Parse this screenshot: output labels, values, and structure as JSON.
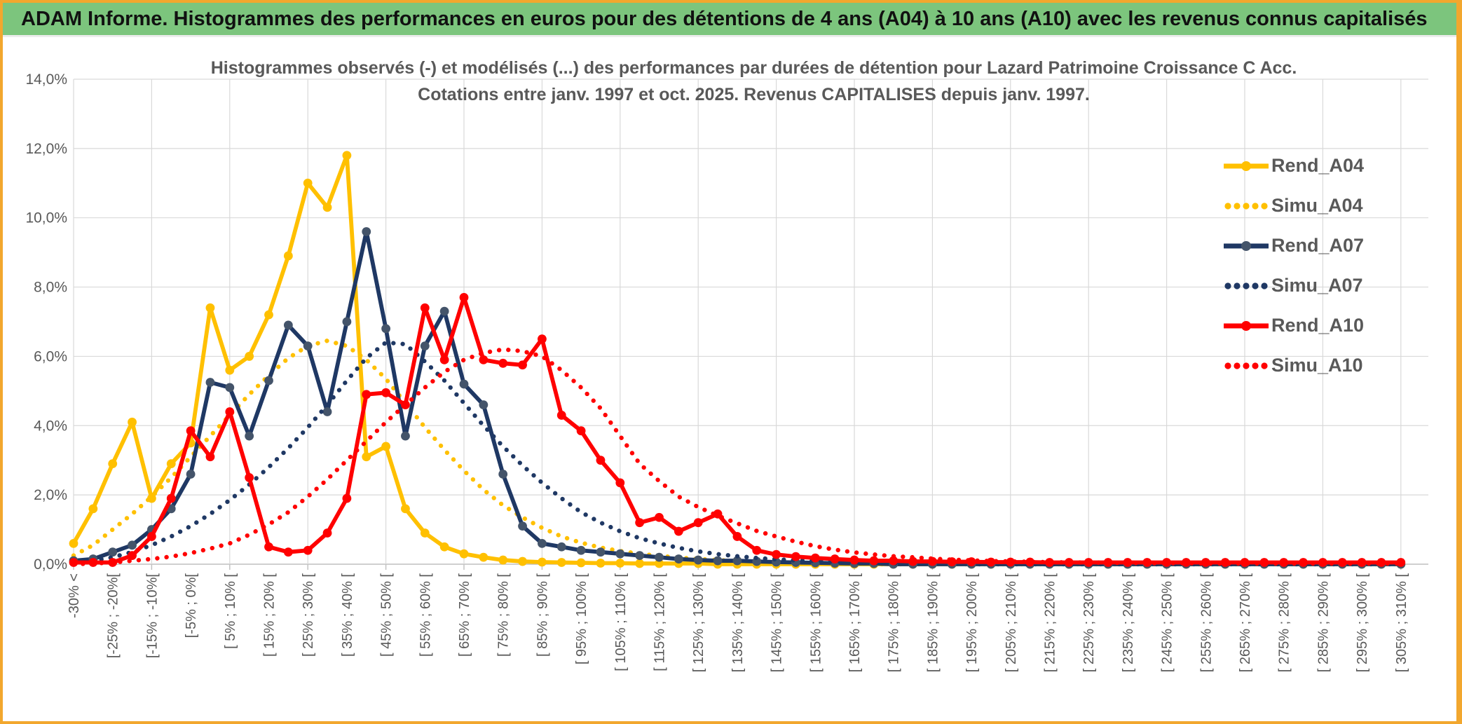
{
  "banner": {
    "title": "ADAM Informe. Histogrammes des performances en euros pour des détentions de 4 ans (A04) à 10 ans (A10) avec les revenus connus capitalisés",
    "bg_color": "#7CC57D",
    "frame_color": "#F2A72E"
  },
  "chart_data": {
    "type": "line",
    "title": "Histogrammes observés (-) et modélisés (...) des performances par durées de détention pour Lazard Patrimoine Croissance C Acc.",
    "subtitle": "Cotations entre janv. 1997 et oct. 2025. Revenus CAPITALISES depuis janv. 1997.",
    "xlabel": "",
    "ylabel": "",
    "ylim": [
      0,
      14
    ],
    "grid": "on",
    "legend_position": "right",
    "text_color": "#595959",
    "grid_color": "#D9D9D9",
    "axis_color": "#BFBFBF",
    "y_tick_values": [
      14,
      12,
      10,
      8,
      6,
      4,
      2,
      0
    ],
    "y_tick_labels": [
      "14,0%",
      "12,0%",
      "10,0%",
      "8,0%",
      "6,0%",
      "4,0%",
      "2,0%",
      "0,0%"
    ],
    "categories": [
      "-30% <",
      "",
      "[-25% ; -20%[",
      "",
      "[-15% ; -10%[",
      "",
      "[-5% ; 0%[",
      "",
      "[ 5% ; 10% [",
      "",
      "[ 15% ; 20% [",
      "",
      "[ 25% ; 30% [",
      "",
      "[ 35% ; 40% [",
      "",
      "[ 45% ; 50% [",
      "",
      "[ 55% ; 60% [",
      "",
      "[ 65% ; 70% [",
      "",
      "[ 75% ; 80% [",
      "",
      "[ 85% ; 90% [",
      "",
      "[ 95% ; 100% [",
      "",
      "[ 105% ; 110% [",
      "",
      "[ 115% ; 120% [",
      "",
      "[ 125% ; 130% [",
      "",
      "[ 135% ; 140% [",
      "",
      "[ 145% ; 150% [",
      "",
      "[ 155% ; 160% [",
      "",
      "[ 165% ; 170% [",
      "",
      "[ 175% ; 180% [",
      "",
      "[ 185% ; 190% [",
      "",
      "[ 195% ; 200% [",
      "",
      "[ 205% ; 210% [",
      "",
      "[ 215% ; 220% [",
      "",
      "[ 225% ; 230% [",
      "",
      "[ 235% ; 240% [",
      "",
      "[ 245% ; 250% [",
      "",
      "[ 255% ; 260% [",
      "",
      "[ 265% ; 270% [",
      "",
      "[ 275% ; 280% [",
      "",
      "[ 285% ; 290% [",
      "",
      "[ 295% ; 300% [",
      "",
      "[ 305% ; 310% ["
    ],
    "series": [
      {
        "name": "Rend_A04",
        "color": "#FFC000",
        "style": "solid",
        "markers": true,
        "values": [
          0.6,
          1.6,
          2.9,
          4.1,
          1.9,
          2.9,
          3.5,
          7.4,
          5.6,
          6.0,
          7.2,
          8.9,
          11.0,
          10.3,
          11.8,
          3.1,
          3.4,
          1.6,
          0.9,
          0.5,
          0.3,
          0.2,
          0.12,
          0.08,
          0.06,
          0.05,
          0.04,
          0.03,
          0.03,
          0.02,
          0.02,
          0.02,
          0.02,
          0,
          0,
          0,
          0,
          0,
          0,
          0,
          0,
          0,
          0,
          0,
          0,
          0,
          0,
          0,
          0,
          0,
          0,
          0,
          0,
          0,
          0,
          0,
          0,
          0,
          0,
          0,
          0,
          0,
          0,
          0,
          0,
          0,
          0,
          0,
          0
        ]
      },
      {
        "name": "Simu_A04",
        "color": "#FFC000",
        "style": "dotted",
        "markers": false,
        "values": [
          0.25,
          0.55,
          1.0,
          1.45,
          1.95,
          2.5,
          3.1,
          3.7,
          4.3,
          4.9,
          5.45,
          5.95,
          6.3,
          6.45,
          6.3,
          5.9,
          5.35,
          4.65,
          3.95,
          3.3,
          2.7,
          2.15,
          1.7,
          1.35,
          1.05,
          0.8,
          0.62,
          0.48,
          0.38,
          0.3,
          0.24,
          0.19,
          0.15,
          0.12,
          0.09,
          0.07,
          0.05,
          0.04,
          0.03,
          0.02,
          0.02,
          0,
          0,
          0,
          0,
          0,
          0,
          0,
          0,
          0,
          0,
          0,
          0,
          0,
          0,
          0,
          0,
          0,
          0,
          0,
          0,
          0,
          0,
          0,
          0,
          0,
          0,
          0,
          0
        ]
      },
      {
        "name": "Rend_A07",
        "color": "#1F3864",
        "style": "solid",
        "markers": true,
        "marker_color": "#44546A",
        "values": [
          0.1,
          0.15,
          0.35,
          0.55,
          1.0,
          1.6,
          2.6,
          5.25,
          5.1,
          3.7,
          5.3,
          6.9,
          6.3,
          4.4,
          7.0,
          9.6,
          6.8,
          3.7,
          6.3,
          7.3,
          5.2,
          4.6,
          2.6,
          1.1,
          0.6,
          0.5,
          0.4,
          0.35,
          0.3,
          0.25,
          0.2,
          0.15,
          0.12,
          0.1,
          0.1,
          0.08,
          0.06,
          0.05,
          0.04,
          0.03,
          0.02,
          0.02,
          0,
          0,
          0,
          0,
          0,
          0,
          0,
          0,
          0,
          0,
          0,
          0,
          0,
          0,
          0,
          0,
          0,
          0,
          0,
          0,
          0,
          0,
          0,
          0,
          0,
          0,
          0
        ]
      },
      {
        "name": "Simu_A07",
        "color": "#1F3864",
        "style": "dotted",
        "markers": false,
        "values": [
          0.05,
          0.1,
          0.2,
          0.35,
          0.55,
          0.8,
          1.1,
          1.45,
          1.85,
          2.3,
          2.8,
          3.35,
          3.95,
          4.6,
          5.3,
          5.95,
          6.4,
          6.35,
          5.85,
          5.3,
          4.65,
          4.0,
          3.4,
          2.85,
          2.35,
          1.9,
          1.5,
          1.2,
          0.95,
          0.75,
          0.6,
          0.47,
          0.37,
          0.29,
          0.23,
          0.18,
          0.14,
          0.11,
          0.09,
          0.07,
          0.05,
          0.04,
          0.03,
          0.03,
          0.02,
          0.02,
          0,
          0,
          0,
          0,
          0,
          0,
          0,
          0,
          0,
          0,
          0,
          0,
          0,
          0,
          0,
          0,
          0,
          0,
          0,
          0,
          0,
          0,
          0
        ]
      },
      {
        "name": "Rend_A10",
        "color": "#FF0000",
        "style": "solid",
        "markers": true,
        "values": [
          0.05,
          0.05,
          0.05,
          0.25,
          0.8,
          1.9,
          3.85,
          3.1,
          4.4,
          2.5,
          0.5,
          0.35,
          0.4,
          0.9,
          1.9,
          4.9,
          4.95,
          4.6,
          7.4,
          5.9,
          7.7,
          5.9,
          5.8,
          5.75,
          6.5,
          4.3,
          3.85,
          3.0,
          2.35,
          1.2,
          1.35,
          0.95,
          1.2,
          1.45,
          0.8,
          0.4,
          0.28,
          0.22,
          0.18,
          0.15,
          0.12,
          0.1,
          0.1,
          0.08,
          0.08,
          0.07,
          0.07,
          0.06,
          0.06,
          0.06,
          0.05,
          0.05,
          0.05,
          0.05,
          0.05,
          0.05,
          0.05,
          0.05,
          0.05,
          0.05,
          0.05,
          0.05,
          0.05,
          0.05,
          0.05,
          0.05,
          0.05,
          0.05,
          0.05
        ]
      },
      {
        "name": "Simu_A10",
        "color": "#FF0000",
        "style": "dotted",
        "markers": false,
        "values": [
          0,
          0.02,
          0.05,
          0.1,
          0.15,
          0.22,
          0.32,
          0.45,
          0.6,
          0.85,
          1.15,
          1.5,
          1.95,
          2.45,
          3.0,
          3.55,
          4.1,
          4.6,
          5.1,
          5.55,
          5.9,
          6.1,
          6.2,
          6.15,
          6.0,
          5.6,
          5.1,
          4.5,
          3.7,
          2.9,
          2.4,
          1.95,
          1.65,
          1.4,
          1.18,
          0.96,
          0.8,
          0.65,
          0.52,
          0.42,
          0.34,
          0.28,
          0.23,
          0.2,
          0.16,
          0.13,
          0.11,
          0.09,
          0.08,
          0.07,
          0.06,
          0.05,
          0.05,
          0.04,
          0.04,
          0.03,
          0.03,
          0.03,
          0.02,
          0.02,
          0.02,
          0.02,
          0.02,
          0.02,
          0.02,
          0.02,
          0.02,
          0.02,
          0.02
        ]
      }
    ]
  }
}
